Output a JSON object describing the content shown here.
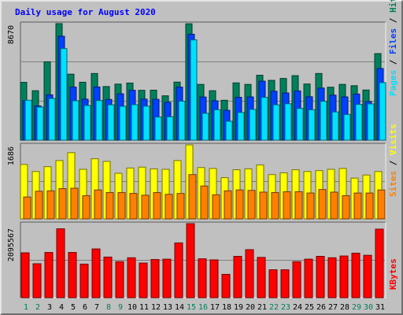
{
  "title": "Daily usage for August 2020",
  "colors": {
    "background": "#c0c0c0",
    "plot": "#c0c0c0",
    "hits": "#00805c",
    "files": "#0040ff",
    "pages": "#00e0ff",
    "visits": "#ffff00",
    "sites": "#ff8000",
    "kbytes": "#ff0000",
    "weekday_label": "#000000",
    "weekend_label": "#00805c",
    "title": "#0000ff"
  },
  "chart_data": [
    {
      "type": "bar",
      "title": "Daily usage for August 2020",
      "ylabel": "8670",
      "legend": [
        "Pages",
        "Files",
        "Hits"
      ],
      "legend_placement": "right",
      "ylim": [
        0,
        8670
      ],
      "grid": true,
      "categories": [
        "1",
        "2",
        "3",
        "4",
        "5",
        "6",
        "7",
        "8",
        "9",
        "10",
        "11",
        "12",
        "13",
        "14",
        "15",
        "16",
        "17",
        "18",
        "19",
        "20",
        "21",
        "22",
        "23",
        "24",
        "25",
        "26",
        "27",
        "28",
        "29",
        "30",
        "31"
      ],
      "series": [
        {
          "name": "Hits",
          "values": [
            4300,
            3680,
            5830,
            8670,
            4910,
            4310,
            4960,
            3990,
            4170,
            4250,
            3710,
            3720,
            3300,
            4320,
            8660,
            4150,
            3680,
            2970,
            4260,
            4150,
            4830,
            4450,
            4590,
            4800,
            4180,
            4960,
            3940,
            4150,
            4050,
            3730,
            6440
          ]
        },
        {
          "name": "Files",
          "values": [
            2950,
            2550,
            3370,
            7730,
            3950,
            3050,
            3960,
            3030,
            3450,
            3710,
            3050,
            3040,
            2820,
            3950,
            7880,
            3210,
            2930,
            2220,
            3190,
            3220,
            4390,
            3640,
            3510,
            3660,
            3230,
            3880,
            3350,
            3220,
            3430,
            2870,
            5330
          ]
        },
        {
          "name": "Pages",
          "values": [
            2970,
            2460,
            3100,
            6810,
            2930,
            2580,
            2950,
            2630,
            2520,
            2640,
            2530,
            1720,
            1740,
            2900,
            7460,
            2000,
            2260,
            1410,
            2060,
            2290,
            3180,
            2630,
            2710,
            2360,
            2260,
            2890,
            2100,
            1910,
            2660,
            2700,
            4280
          ]
        }
      ]
    },
    {
      "type": "bar",
      "ylabel": "1686",
      "legend": [
        "Sites",
        "Visits"
      ],
      "legend_placement": "right",
      "ylim": [
        0,
        1686
      ],
      "grid": true,
      "categories": [
        "1",
        "2",
        "3",
        "4",
        "5",
        "6",
        "7",
        "8",
        "9",
        "10",
        "11",
        "12",
        "13",
        "14",
        "15",
        "16",
        "17",
        "18",
        "19",
        "20",
        "21",
        "22",
        "23",
        "24",
        "25",
        "26",
        "27",
        "28",
        "29",
        "30",
        "31"
      ],
      "series": [
        {
          "name": "Visits",
          "values": [
            1240,
            1080,
            1190,
            1330,
            1510,
            1130,
            1370,
            1310,
            1040,
            1160,
            1180,
            1140,
            1130,
            1330,
            1686,
            1170,
            1150,
            940,
            1120,
            1140,
            1230,
            1010,
            1050,
            1120,
            1080,
            1100,
            1130,
            1150,
            930,
            1000,
            1080
          ]
        },
        {
          "name": "Sites",
          "values": [
            500,
            630,
            640,
            690,
            700,
            530,
            660,
            600,
            600,
            580,
            540,
            600,
            560,
            580,
            1010,
            750,
            550,
            640,
            660,
            650,
            610,
            600,
            620,
            620,
            590,
            670,
            610,
            530,
            590,
            590,
            660
          ]
        }
      ]
    },
    {
      "type": "bar",
      "ylabel": "2095567",
      "legend": [
        "KBytes"
      ],
      "legend_placement": "right",
      "ylim": [
        0,
        2095567
      ],
      "grid": true,
      "categories": [
        "1",
        "2",
        "3",
        "4",
        "5",
        "6",
        "7",
        "8",
        "9",
        "10",
        "11",
        "12",
        "13",
        "14",
        "15",
        "16",
        "17",
        "18",
        "19",
        "20",
        "21",
        "22",
        "23",
        "24",
        "25",
        "26",
        "27",
        "28",
        "29",
        "30",
        "31"
      ],
      "series": [
        {
          "name": "KBytes",
          "values": [
            1270000,
            960000,
            1280000,
            1950000,
            1280000,
            950000,
            1380000,
            1150000,
            1020000,
            1130000,
            980000,
            1080000,
            1090000,
            1550000,
            2095567,
            1100000,
            1070000,
            660000,
            1170000,
            1360000,
            1140000,
            790000,
            790000,
            1020000,
            1090000,
            1170000,
            1130000,
            1180000,
            1260000,
            1200000,
            1940000
          ]
        }
      ]
    }
  ]
}
